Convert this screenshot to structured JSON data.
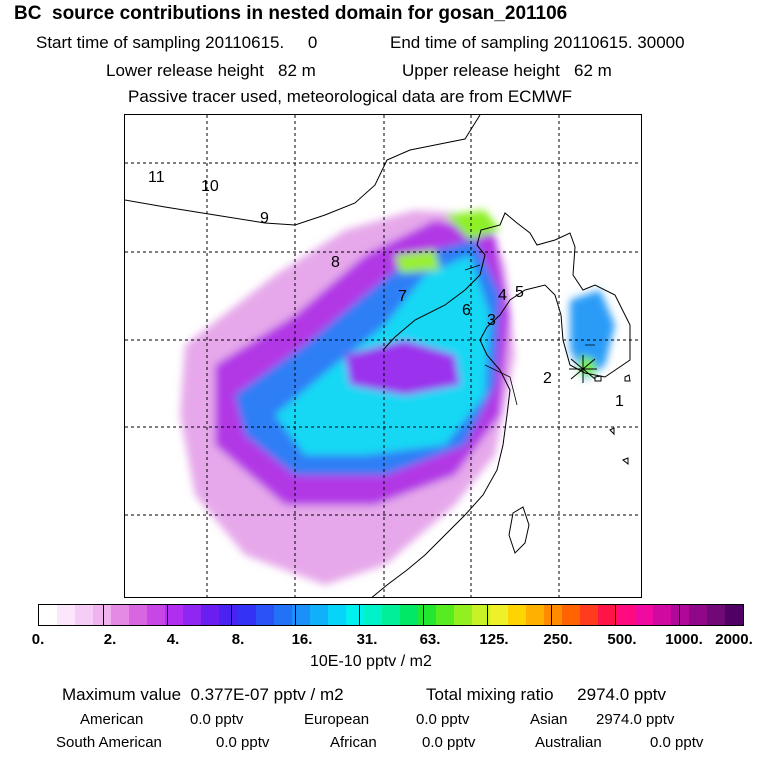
{
  "header": {
    "title": "BC  source contributions in nested domain for gosan_201106",
    "start_label": "Start time of sampling 20110615.     0",
    "end_label": "End time of sampling 20110615. 30000",
    "lower_label": "Lower release height   82 m",
    "upper_label": "Upper release height   62 m",
    "tracer_label": "Passive tracer used, meteorological data are from ECMWF"
  },
  "map": {
    "site_numbers": [
      "1",
      "2",
      "3",
      "4",
      "5",
      "6",
      "7",
      "8",
      "9",
      "10",
      "11"
    ]
  },
  "colorbar": {
    "ticks": [
      "0.",
      "2.",
      "4.",
      "8.",
      "16.",
      "31.",
      "63.",
      "125.",
      "250.",
      "500.",
      "1000.",
      "2000."
    ],
    "unit": "10E-10 pptv / m2",
    "colors": [
      "#ffffff",
      "#fbe6fb",
      "#f6cdf6",
      "#f0b3f0",
      "#e48ae4",
      "#d866e0",
      "#c845e6",
      "#b02ef0",
      "#8f26f2",
      "#6a1ff0",
      "#4a22f2",
      "#3332f5",
      "#2a52f7",
      "#2272f8",
      "#1c90f9",
      "#12b0fa",
      "#06d4fb",
      "#00f0f0",
      "#00f2c8",
      "#00f09a",
      "#00e866",
      "#22e630",
      "#56ec20",
      "#92f020",
      "#c8f226",
      "#f0f02a",
      "#ffd400",
      "#ffb000",
      "#ff8c00",
      "#ff6400",
      "#ff3c1e",
      "#ff1448",
      "#ff0a80",
      "#f00aa0",
      "#d00aa0",
      "#b00898",
      "#900888",
      "#700878",
      "#500064"
    ]
  },
  "summary": {
    "max_label": "Maximum value  0.377E-07 pptv / m2",
    "total_label": "Total mixing ratio     2974.0 pptv",
    "american_label": "American",
    "american_value": "0.0 pptv",
    "european_label": "European",
    "european_value": "0.0 pptv",
    "asian_label": "Asian",
    "asian_value": "2974.0 pptv",
    "south_american_label": "South American",
    "south_american_value": "0.0 pptv",
    "african_label": "African",
    "african_value": "0.0 pptv",
    "australian_label": "Australian",
    "australian_value": "0.0 pptv"
  }
}
